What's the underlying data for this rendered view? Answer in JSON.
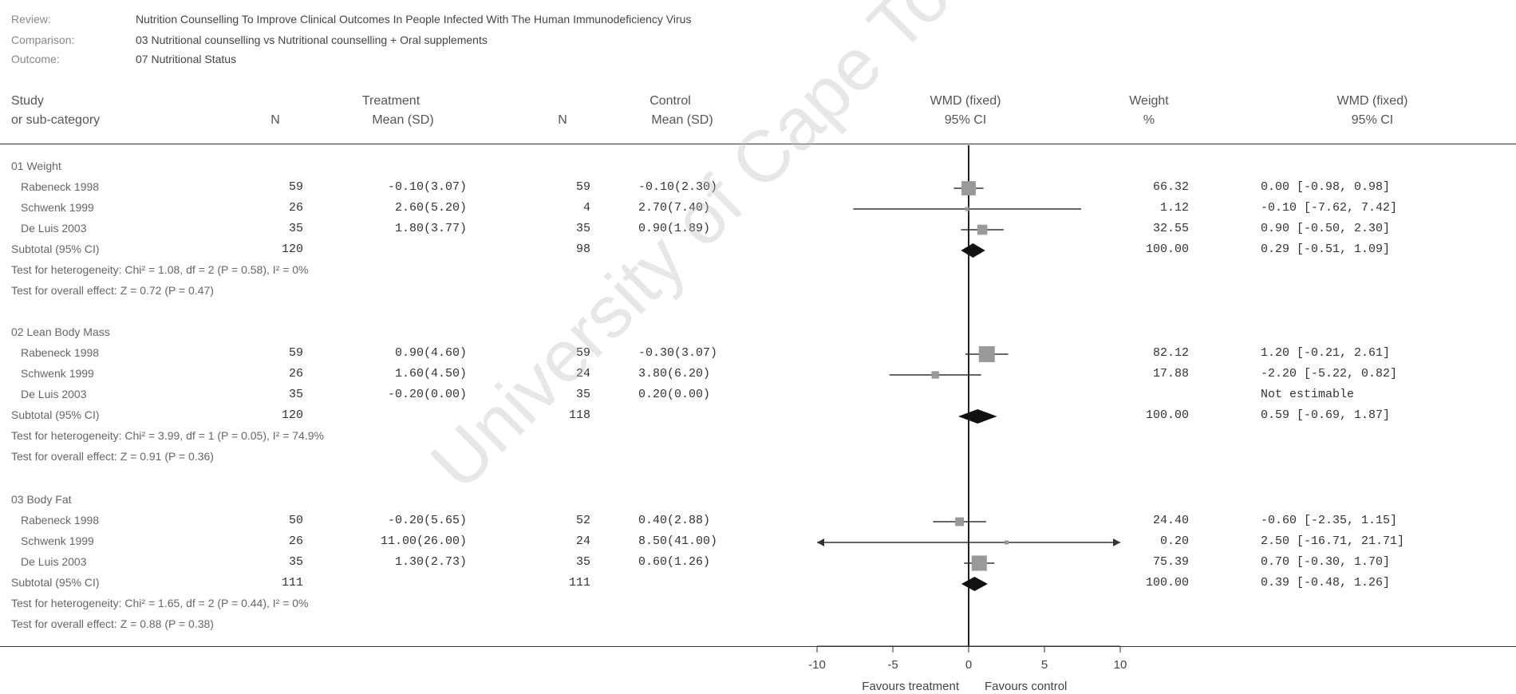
{
  "header": {
    "review_label": "Review:",
    "review_value": "Nutrition Counselling To Improve Clinical Outcomes In People Infected With The Human Immunodeficiency Virus",
    "comparison_label": "Comparison:",
    "comparison_value": "03 Nutritional counselling vs Nutritional counselling + Oral supplements",
    "outcome_label": "Outcome:",
    "outcome_value": "07 Nutritional Status"
  },
  "columns": {
    "study_l1": "Study",
    "study_l2": "or sub-category",
    "treatment": "Treatment",
    "n": "N",
    "mean_sd": "Mean (SD)",
    "control": "Control",
    "wmd_fixed": "WMD (fixed)",
    "ci": "95% CI",
    "weight": "Weight",
    "pct": "%"
  },
  "chart_data": {
    "type": "forest",
    "xlim": [
      -10,
      10
    ],
    "xticks": [
      "-10",
      "-5",
      "0",
      "5",
      "10"
    ],
    "favours_left": "Favours treatment",
    "favours_right": "Favours control",
    "groups": [
      {
        "title": "01 Weight",
        "studies": [
          {
            "name": "Rabeneck 1998",
            "n_t": "59",
            "t_msd": "-0.10(3.07)",
            "n_c": "59",
            "c_msd": "-0.10(2.30)",
            "weight": "66.32",
            "wmd": "0.00 [-0.98, 0.98]",
            "est": 0.0,
            "lo": -0.98,
            "hi": 0.98
          },
          {
            "name": "Schwenk 1999",
            "n_t": "26",
            "t_msd": "2.60(5.20)",
            "n_c": "4",
            "c_msd": "2.70(7.40)",
            "weight": "1.12",
            "wmd": "-0.10 [-7.62, 7.42]",
            "est": -0.1,
            "lo": -7.62,
            "hi": 7.42
          },
          {
            "name": "De Luis 2003",
            "n_t": "35",
            "t_msd": "1.80(3.77)",
            "n_c": "35",
            "c_msd": "0.90(1.89)",
            "weight": "32.55",
            "wmd": "0.90 [-0.50, 2.30]",
            "est": 0.9,
            "lo": -0.5,
            "hi": 2.3
          }
        ],
        "subtotal": {
          "label": "Subtotal (95% CI)",
          "n_t": "120",
          "n_c": "98",
          "weight": "100.00",
          "wmd": "0.29 [-0.51, 1.09]",
          "est": 0.29,
          "lo": -0.51,
          "hi": 1.09
        },
        "heterogeneity": "Test for heterogeneity: Chi² = 1.08, df = 2 (P = 0.58), I² = 0%",
        "overall": "Test for overall effect: Z = 0.72 (P = 0.47)"
      },
      {
        "title": "02 Lean Body Mass",
        "studies": [
          {
            "name": "Rabeneck 1998",
            "n_t": "59",
            "t_msd": "0.90(4.60)",
            "n_c": "59",
            "c_msd": "-0.30(3.07)",
            "weight": "82.12",
            "wmd": "1.20 [-0.21, 2.61]",
            "est": 1.2,
            "lo": -0.21,
            "hi": 2.61
          },
          {
            "name": "Schwenk 1999",
            "n_t": "26",
            "t_msd": "1.60(4.50)",
            "n_c": "24",
            "c_msd": "3.80(6.20)",
            "weight": "17.88",
            "wmd": "-2.20 [-5.22, 0.82]",
            "est": -2.2,
            "lo": -5.22,
            "hi": 0.82
          },
          {
            "name": "De Luis 2003",
            "n_t": "35",
            "t_msd": "-0.20(0.00)",
            "n_c": "35",
            "c_msd": "0.20(0.00)",
            "weight": "",
            "wmd": "Not estimable",
            "est": null,
            "lo": null,
            "hi": null
          }
        ],
        "subtotal": {
          "label": "Subtotal (95% CI)",
          "n_t": "120",
          "n_c": "118",
          "weight": "100.00",
          "wmd": "0.59 [-0.69, 1.87]",
          "est": 0.59,
          "lo": -0.69,
          "hi": 1.87
        },
        "heterogeneity": "Test for heterogeneity: Chi² = 3.99, df = 1 (P = 0.05), I² = 74.9%",
        "overall": "Test for overall effect: Z = 0.91 (P = 0.36)"
      },
      {
        "title": "03 Body Fat",
        "studies": [
          {
            "name": "Rabeneck 1998",
            "n_t": "50",
            "t_msd": "-0.20(5.65)",
            "n_c": "52",
            "c_msd": "0.40(2.88)",
            "weight": "24.40",
            "wmd": "-0.60 [-2.35, 1.15]",
            "est": -0.6,
            "lo": -2.35,
            "hi": 1.15
          },
          {
            "name": "Schwenk 1999",
            "n_t": "26",
            "t_msd": "11.00(26.00)",
            "n_c": "24",
            "c_msd": "8.50(41.00)",
            "weight": "0.20",
            "wmd": "2.50 [-16.71, 21.71]",
            "est": 2.5,
            "lo": -16.71,
            "hi": 21.71
          },
          {
            "name": "De Luis 2003",
            "n_t": "35",
            "t_msd": "1.30(2.73)",
            "n_c": "35",
            "c_msd": "0.60(1.26)",
            "weight": "75.39",
            "wmd": "0.70 [-0.30, 1.70]",
            "est": 0.7,
            "lo": -0.3,
            "hi": 1.7
          }
        ],
        "subtotal": {
          "label": "Subtotal (95% CI)",
          "n_t": "111",
          "n_c": "111",
          "weight": "100.00",
          "wmd": "0.39 [-0.48, 1.26]",
          "est": 0.39,
          "lo": -0.48,
          "hi": 1.26
        },
        "heterogeneity": "Test for heterogeneity: Chi² = 1.65, df = 2 (P = 0.44), I² = 0%",
        "overall": "Test for overall effect: Z = 0.88 (P = 0.38)"
      }
    ]
  },
  "watermark": "University of Cape Town"
}
